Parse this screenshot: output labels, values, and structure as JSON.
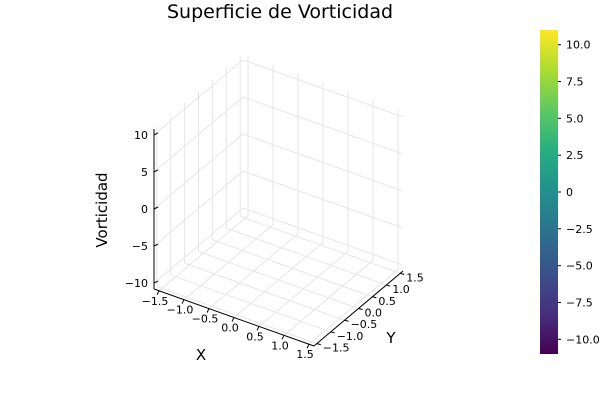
{
  "chart_data": {
    "type": "surface",
    "title": "Superficie de Vorticidad",
    "xlabel": "X",
    "ylabel": "Y",
    "zlabel": "Vorticidad",
    "x_ticks": [
      "−1.5",
      "−1.0",
      "−0.5",
      "0.0",
      "0.5",
      "1.0",
      "1.5"
    ],
    "x_tick_values": [
      -1.5,
      -1.0,
      -0.5,
      0.0,
      0.5,
      1.0,
      1.5
    ],
    "y_ticks": [
      "−1.5",
      "−1.0",
      "−0.5",
      "0.0",
      "0.5",
      "1.0",
      "1.5"
    ],
    "y_tick_values": [
      -1.5,
      -1.0,
      -0.5,
      0.0,
      0.5,
      1.0,
      1.5
    ],
    "z_ticks": [
      "−10",
      "−5",
      "0",
      "5",
      "10"
    ],
    "z_tick_values": [
      -10,
      -5,
      0,
      5,
      10
    ],
    "xlim": [
      -1.6,
      1.6
    ],
    "ylim": [
      -1.6,
      1.6
    ],
    "zlim": [
      -10.8,
      10.8
    ],
    "grid": true,
    "colorbar": {
      "colormap": "viridis",
      "range": [
        -11,
        11
      ],
      "ticks": [
        "−10.0",
        "−7.5",
        "−5.0",
        "−2.5",
        "0",
        "2.5",
        "5.0",
        "7.5",
        "10.0"
      ],
      "tick_values": [
        -10,
        -7.5,
        -5,
        -2.5,
        0,
        2.5,
        5,
        7.5,
        10
      ],
      "colors": [
        "#440154",
        "#472f7d",
        "#3b518b",
        "#2c718e",
        "#21908d",
        "#27ad81",
        "#5cc863",
        "#aadc32",
        "#fde725"
      ]
    }
  }
}
